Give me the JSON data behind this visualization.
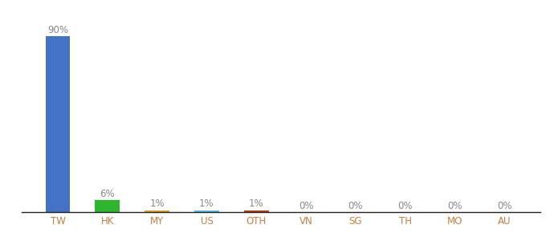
{
  "categories": [
    "TW",
    "HK",
    "MY",
    "US",
    "OTH",
    "VN",
    "SG",
    "TH",
    "MO",
    "AU"
  ],
  "values": [
    90,
    6,
    1,
    1,
    1,
    0,
    0,
    0,
    0,
    0
  ],
  "labels": [
    "90%",
    "6%",
    "1%",
    "1%",
    "1%",
    "0%",
    "0%",
    "0%",
    "0%",
    "0%"
  ],
  "bar_colors": [
    "#4472c4",
    "#2db52d",
    "#e6a020",
    "#5bbde8",
    "#b54014",
    "#4472c4",
    "#4472c4",
    "#4472c4",
    "#4472c4",
    "#4472c4"
  ],
  "background_color": "#ffffff",
  "bar_width": 0.5,
  "ylim": [
    0,
    100
  ],
  "label_fontsize": 8.5,
  "tick_fontsize": 8.5,
  "label_color": "#888888",
  "tick_color": "#c08040"
}
